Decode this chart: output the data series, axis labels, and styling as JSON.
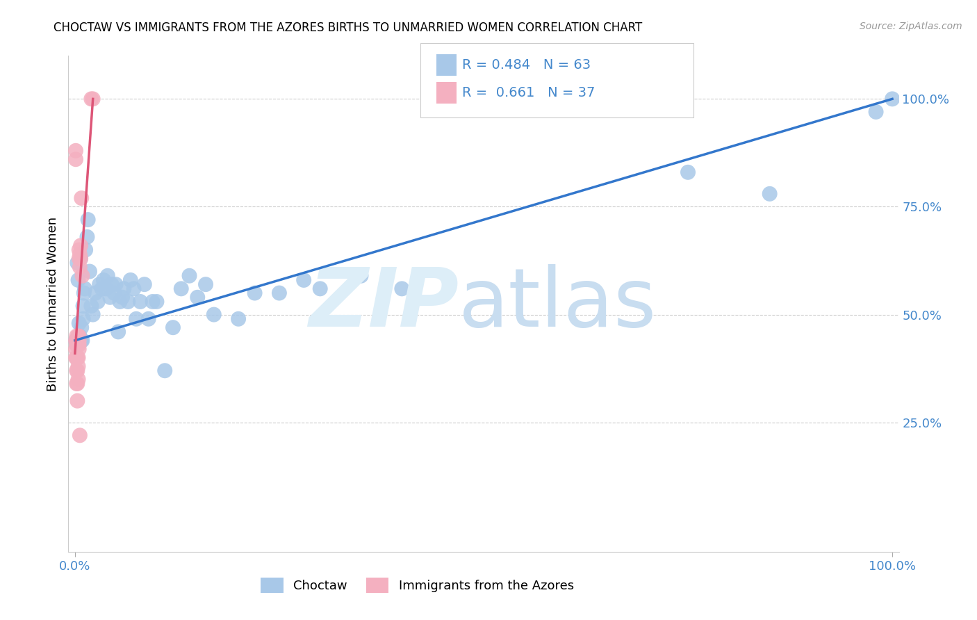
{
  "title": "CHOCTAW VS IMMIGRANTS FROM THE AZORES BIRTHS TO UNMARRIED WOMEN CORRELATION CHART",
  "source": "Source: ZipAtlas.com",
  "ylabel": "Births to Unmarried Women",
  "R_blue": "0.484",
  "N_blue": "63",
  "R_pink": "0.661",
  "N_pink": "37",
  "blue_color": "#a8c8e8",
  "pink_color": "#f4b0c0",
  "blue_line_color": "#3377cc",
  "pink_line_color": "#dd5577",
  "axis_color": "#4488cc",
  "legend1_label": "Choctaw",
  "legend2_label": "Immigrants from the Azores",
  "blue_x": [
    0.001,
    0.002,
    0.003,
    0.004,
    0.005,
    0.005,
    0.006,
    0.007,
    0.008,
    0.008,
    0.009,
    0.01,
    0.01,
    0.011,
    0.012,
    0.013,
    0.015,
    0.016,
    0.018,
    0.02,
    0.022,
    0.025,
    0.028,
    0.03,
    0.033,
    0.035,
    0.038,
    0.04,
    0.043,
    0.045,
    0.048,
    0.05,
    0.053,
    0.055,
    0.058,
    0.06,
    0.065,
    0.068,
    0.072,
    0.075,
    0.08,
    0.085,
    0.09,
    0.095,
    0.1,
    0.11,
    0.12,
    0.13,
    0.14,
    0.15,
    0.16,
    0.17,
    0.2,
    0.22,
    0.25,
    0.28,
    0.3,
    0.35,
    0.4,
    0.75,
    0.85,
    0.98,
    1.0
  ],
  "blue_y": [
    0.44,
    0.43,
    0.62,
    0.58,
    0.44,
    0.48,
    0.45,
    0.63,
    0.44,
    0.47,
    0.44,
    0.49,
    0.52,
    0.55,
    0.56,
    0.65,
    0.68,
    0.72,
    0.6,
    0.52,
    0.5,
    0.55,
    0.53,
    0.57,
    0.56,
    0.58,
    0.56,
    0.59,
    0.54,
    0.57,
    0.55,
    0.57,
    0.46,
    0.53,
    0.54,
    0.56,
    0.53,
    0.58,
    0.56,
    0.49,
    0.53,
    0.57,
    0.49,
    0.53,
    0.53,
    0.37,
    0.47,
    0.56,
    0.59,
    0.54,
    0.57,
    0.5,
    0.49,
    0.55,
    0.55,
    0.58,
    0.56,
    0.59,
    0.56,
    0.83,
    0.78,
    0.97,
    1.0
  ],
  "pink_x": [
    0.001,
    0.001,
    0.001,
    0.001,
    0.001,
    0.002,
    0.002,
    0.002,
    0.002,
    0.002,
    0.002,
    0.003,
    0.003,
    0.003,
    0.003,
    0.003,
    0.003,
    0.004,
    0.004,
    0.004,
    0.004,
    0.004,
    0.005,
    0.005,
    0.005,
    0.005,
    0.005,
    0.005,
    0.006,
    0.006,
    0.006,
    0.007,
    0.007,
    0.008,
    0.009,
    0.02,
    0.022
  ],
  "pink_y": [
    0.44,
    0.86,
    0.88,
    0.42,
    0.4,
    0.44,
    0.45,
    0.43,
    0.4,
    0.37,
    0.34,
    0.44,
    0.43,
    0.4,
    0.37,
    0.34,
    0.3,
    0.45,
    0.43,
    0.4,
    0.38,
    0.35,
    0.45,
    0.44,
    0.43,
    0.42,
    0.65,
    0.63,
    0.64,
    0.61,
    0.22,
    0.66,
    0.63,
    0.77,
    0.59,
    1.0,
    1.0
  ],
  "blue_line_x_start": 0.0,
  "blue_line_x_end": 1.0,
  "blue_line_y_start": 0.44,
  "blue_line_y_end": 1.0,
  "pink_line_x_start": 0.0,
  "pink_line_x_end": 0.022,
  "pink_line_y_start": 0.41,
  "pink_line_y_end": 1.0,
  "xmin": 0.0,
  "xmax": 1.0,
  "ymin": 0.0,
  "ymax": 1.05,
  "yticks": [
    0.25,
    0.5,
    0.75,
    1.0
  ],
  "ytick_labels": [
    "25.0%",
    "50.0%",
    "75.0%",
    "100.0%"
  ],
  "xtick_labels": [
    "0.0%",
    "100.0%"
  ]
}
